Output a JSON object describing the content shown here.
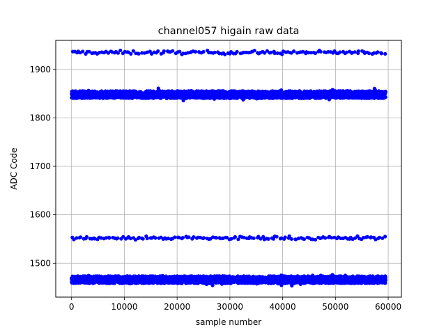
{
  "chart_data": {
    "type": "scatter",
    "title": "channel057 higain raw data",
    "xlabel": "sample number",
    "ylabel": "ADC Code",
    "xlim": [
      -3000,
      62500
    ],
    "ylim": [
      1430,
      1960
    ],
    "xticks": [
      0,
      10000,
      20000,
      30000,
      40000,
      50000,
      60000
    ],
    "xtick_labels": [
      "0",
      "10000",
      "20000",
      "30000",
      "40000",
      "50000",
      "60000"
    ],
    "yticks": [
      1500,
      1600,
      1700,
      1800,
      1900
    ],
    "ytick_labels": [
      "1500",
      "1600",
      "1700",
      "1800",
      "1900"
    ],
    "grid": true,
    "marker_color": "#0000ff",
    "x_range": [
      0,
      59500
    ],
    "bands": [
      {
        "center": 1935,
        "spread": 3,
        "density": "sparse"
      },
      {
        "center": 1848,
        "spread": 10,
        "density": "dense"
      },
      {
        "center": 1552,
        "spread": 3,
        "density": "sparse"
      },
      {
        "center": 1466,
        "spread": 10,
        "density": "dense"
      }
    ]
  }
}
